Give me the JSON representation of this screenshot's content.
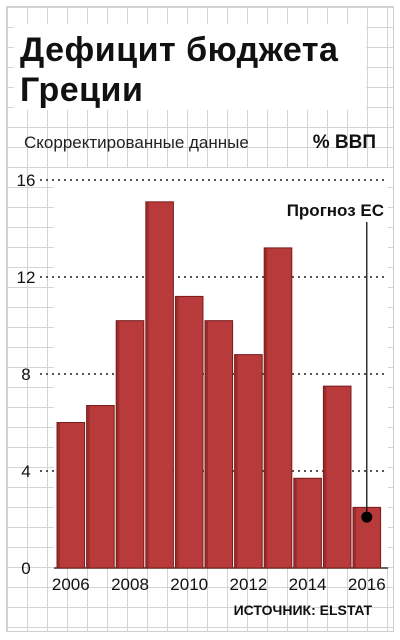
{
  "header": {
    "title": "Дефицит бюджета Греции",
    "subtitle": "Скорректированные данные",
    "unit": "% ВВП",
    "source": "ИСТОЧНИК: ELSTAT"
  },
  "colors": {
    "bar": "#b83a3a",
    "bar_edge": "#7a1c1c",
    "grid_dots": "#555555",
    "forecast_marker": "#000000"
  },
  "chart_data": {
    "type": "bar",
    "title": "Дефицит бюджета Греции",
    "subtitle": "Скорректированные данные",
    "ylabel": "% ВВП",
    "categories": [
      "2006",
      "2007",
      "2008",
      "2009",
      "2010",
      "2011",
      "2012",
      "2013",
      "2014",
      "2015",
      "2016"
    ],
    "values": [
      6.0,
      6.7,
      10.2,
      15.1,
      11.2,
      10.2,
      8.8,
      13.2,
      3.7,
      7.5,
      2.5
    ],
    "ylim": [
      0,
      16
    ],
    "yticks": [
      0,
      4,
      8,
      12,
      16
    ],
    "xtick_labels": [
      "2006",
      "2008",
      "2010",
      "2012",
      "2014",
      "2016"
    ],
    "grid": true,
    "annotations": [
      {
        "text": "Прогноз ЕС",
        "category": "2016",
        "value": 2.1
      }
    ]
  }
}
